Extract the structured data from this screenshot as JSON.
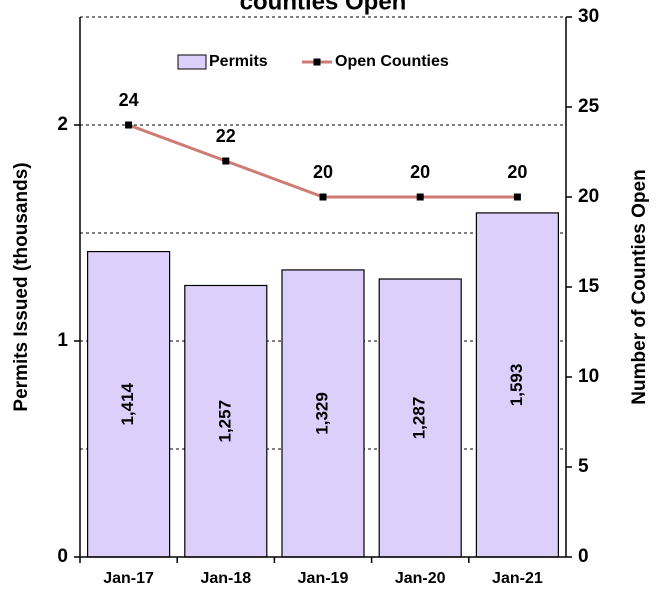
{
  "chart_data": {
    "type": "bar_line",
    "title": "counties Open",
    "y_label": "Permits Issued (thousands)",
    "y2_label": "Number of Counties Open",
    "categories": [
      "Jan-17",
      "Jan-18",
      "Jan-19",
      "Jan-20",
      "Jan-21"
    ],
    "series": [
      {
        "name": "Permits",
        "type": "bar",
        "color": "#dccffa",
        "values": [
          1.414,
          1.257,
          1.329,
          1.287,
          1.593
        ],
        "value_labels": [
          "1,414",
          "1,257",
          "1,329",
          "1,287",
          "1,593"
        ]
      },
      {
        "name": "Open Counties",
        "type": "line",
        "axis": "y2",
        "color": "#d07a74",
        "values": [
          24,
          22,
          20,
          20,
          20
        ]
      }
    ],
    "ylim": [
      0,
      2.5
    ],
    "yticks": [
      0,
      1,
      2
    ],
    "grid_yticks": [
      0.5,
      1,
      1.5,
      2,
      2.5
    ],
    "y2lim": [
      0,
      30
    ],
    "y2ticks": [
      0,
      5,
      10,
      15,
      20,
      25,
      30
    ],
    "grid": true,
    "legend": "top"
  }
}
